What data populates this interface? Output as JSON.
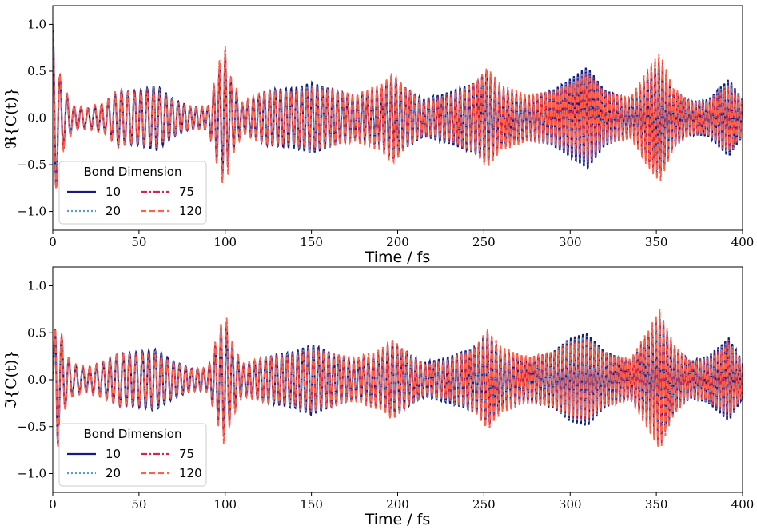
{
  "chart_data": [
    {
      "type": "line",
      "panel": "top",
      "xlabel": "Time / fs",
      "ylabel": "ℜ{C(t)}",
      "xlim": [
        0,
        400
      ],
      "ylim": [
        -1.2,
        1.2
      ],
      "xticks": [
        "0",
        "50",
        "100",
        "150",
        "200",
        "250",
        "300",
        "350",
        "400"
      ],
      "yticks": [
        "−1.0",
        "−0.5",
        "0.0",
        "0.5",
        "1.0"
      ],
      "xtick_values": [
        0,
        50,
        100,
        150,
        200,
        250,
        300,
        350,
        400
      ],
      "ytick_values": [
        -1.0,
        -0.5,
        0.0,
        0.5,
        1.0
      ],
      "legend": {
        "title": "Bond Dimension",
        "placement": "lower-left"
      },
      "grid": false,
      "envelope": {
        "t": [
          0,
          1,
          2,
          4,
          7,
          12,
          20,
          30,
          38,
          45,
          52,
          60,
          70,
          80,
          90,
          97,
          100,
          103,
          110,
          125,
          140,
          150,
          160,
          175,
          190,
          197,
          205,
          215,
          230,
          245,
          252,
          260,
          275,
          290,
          300,
          310,
          320,
          335,
          345,
          352,
          360,
          370,
          380,
          392,
          400
        ],
        "amp": [
          1.0,
          0.95,
          0.75,
          0.45,
          0.28,
          0.12,
          0.1,
          0.15,
          0.3,
          0.28,
          0.3,
          0.35,
          0.2,
          0.12,
          0.12,
          0.55,
          0.65,
          0.4,
          0.15,
          0.3,
          0.32,
          0.38,
          0.32,
          0.22,
          0.3,
          0.45,
          0.32,
          0.2,
          0.28,
          0.38,
          0.5,
          0.3,
          0.22,
          0.3,
          0.42,
          0.55,
          0.3,
          0.2,
          0.45,
          0.6,
          0.3,
          0.18,
          0.2,
          0.42,
          0.2
        ]
      },
      "series": [
        {
          "name": "10",
          "color": "#1a1a80",
          "style": "solid"
        },
        {
          "name": "20",
          "color": "#5b9bd5",
          "style": "dotted"
        },
        {
          "name": "75",
          "color": "#d6264f",
          "style": "dashdot"
        },
        {
          "name": "120",
          "color": "#ff6347",
          "style": "dashed"
        }
      ]
    },
    {
      "type": "line",
      "panel": "bottom",
      "xlabel": "Time / fs",
      "ylabel": "ℑ{C(t)}",
      "xlim": [
        0,
        400
      ],
      "ylim": [
        -1.2,
        1.2
      ],
      "xticks": [
        "0",
        "50",
        "100",
        "150",
        "200",
        "250",
        "300",
        "350",
        "400"
      ],
      "yticks": [
        "−1.0",
        "−0.5",
        "0.0",
        "0.5",
        "1.0"
      ],
      "xtick_values": [
        0,
        50,
        100,
        150,
        200,
        250,
        300,
        350,
        400
      ],
      "ytick_values": [
        -1.0,
        -0.5,
        0.0,
        0.5,
        1.0
      ],
      "legend": {
        "title": "Bond Dimension",
        "placement": "lower-left"
      },
      "grid": false,
      "envelope": {
        "t": [
          0,
          1,
          2,
          4,
          7,
          12,
          20,
          30,
          38,
          45,
          52,
          60,
          70,
          80,
          90,
          97,
          100,
          103,
          110,
          125,
          140,
          150,
          160,
          175,
          190,
          197,
          205,
          215,
          230,
          245,
          252,
          260,
          275,
          290,
          300,
          310,
          320,
          335,
          345,
          352,
          360,
          370,
          380,
          392,
          400
        ],
        "amp": [
          0.6,
          0.9,
          0.85,
          0.55,
          0.3,
          0.15,
          0.12,
          0.18,
          0.28,
          0.28,
          0.3,
          0.32,
          0.2,
          0.12,
          0.12,
          0.5,
          0.62,
          0.4,
          0.15,
          0.25,
          0.3,
          0.38,
          0.3,
          0.2,
          0.28,
          0.4,
          0.3,
          0.18,
          0.25,
          0.35,
          0.5,
          0.3,
          0.22,
          0.3,
          0.45,
          0.5,
          0.3,
          0.2,
          0.45,
          0.65,
          0.35,
          0.2,
          0.25,
          0.45,
          0.2
        ]
      },
      "series": [
        {
          "name": "10",
          "color": "#1a1a80",
          "style": "solid"
        },
        {
          "name": "20",
          "color": "#5b9bd5",
          "style": "dotted"
        },
        {
          "name": "75",
          "color": "#d6264f",
          "style": "dashdot"
        },
        {
          "name": "120",
          "color": "#ff6347",
          "style": "dashed"
        }
      ]
    }
  ]
}
